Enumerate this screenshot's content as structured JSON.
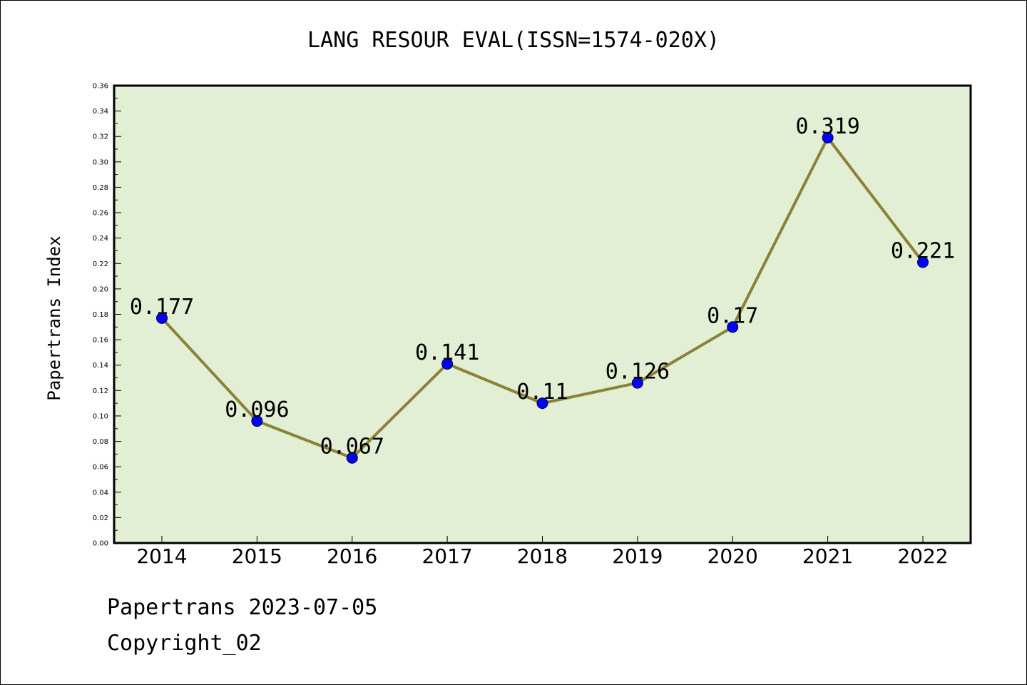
{
  "chart_data": {
    "type": "line",
    "title": "LANG RESOUR EVAL(ISSN=1574-020X)",
    "xlabel": "",
    "ylabel": "Papertrans Index",
    "categories": [
      "2014",
      "2015",
      "2016",
      "2017",
      "2018",
      "2019",
      "2020",
      "2021",
      "2022"
    ],
    "series": [
      {
        "values": [
          0.177,
          0.096,
          0.067,
          0.141,
          0.11,
          0.126,
          0.17,
          0.319,
          0.221
        ],
        "point_labels": [
          "0.177",
          "0.096",
          "0.067",
          "0.141",
          "0.11",
          "0.126",
          "0.17",
          "0.319",
          "0.221"
        ]
      }
    ],
    "ylim": [
      0,
      0.36
    ],
    "yticks": [
      "0.00",
      "0.02",
      "0.04",
      "0.06",
      "0.08",
      "0.10",
      "0.12",
      "0.14",
      "0.16",
      "0.18",
      "0.20",
      "0.22",
      "0.24",
      "0.26",
      "0.28",
      "0.30",
      "0.32",
      "0.34",
      "0.36"
    ],
    "grid": false,
    "legend": "none",
    "colors": {
      "plot_background": "#e2efd4",
      "line": "#8b8137",
      "marker": "#0000ff"
    }
  },
  "footer": {
    "line1": "Papertrans 2023-07-05",
    "line2": "Copyright_02"
  }
}
